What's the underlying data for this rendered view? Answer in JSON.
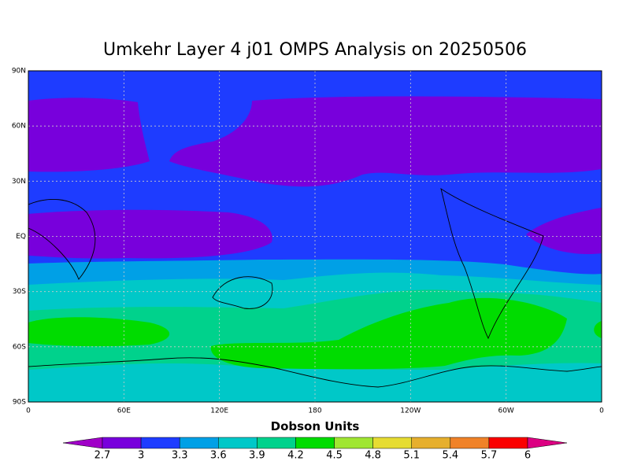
{
  "title": "Umkehr Layer 4 j01 OMPS Analysis on 20250506",
  "yticks": [
    "90N",
    "60N",
    "30N",
    "EQ",
    "30S",
    "60S",
    "90S"
  ],
  "xticks": [
    "0",
    "60E",
    "120E",
    "180",
    "120W",
    "60W",
    "0"
  ],
  "colorbar": {
    "label": "Dobson Units",
    "levels": [
      2.7,
      3,
      3.3,
      3.6,
      3.9,
      4.2,
      4.5,
      4.8,
      5.1,
      5.4,
      5.7,
      6
    ],
    "colors": [
      "#a000c8",
      "#7800dc",
      "#1e3cff",
      "#00a0e6",
      "#00c8c8",
      "#00d28c",
      "#00dc00",
      "#a0e632",
      "#e6dc32",
      "#e6af2d",
      "#f08228",
      "#fa0000",
      "#dc0082"
    ]
  }
}
